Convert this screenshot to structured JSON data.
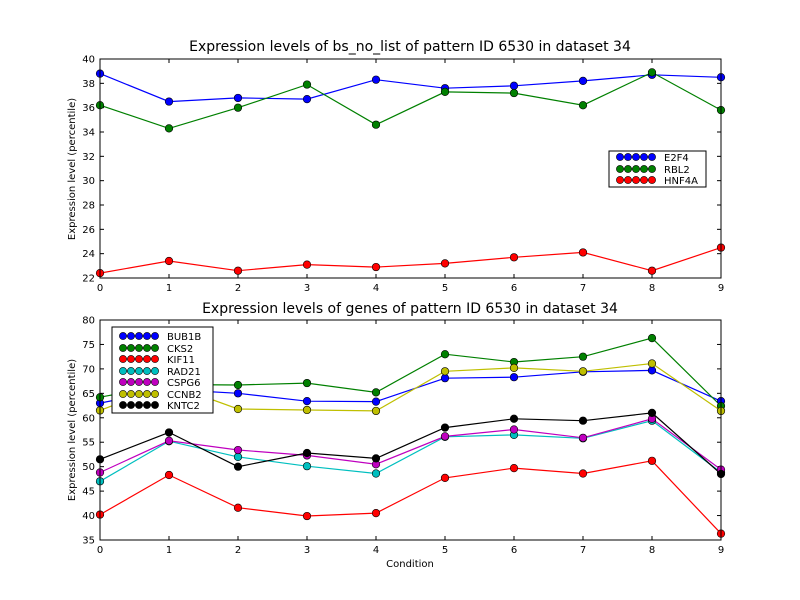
{
  "chart_data": [
    {
      "type": "line",
      "title": "Expression levels of bs_no_list of pattern ID 6530 in dataset 34",
      "xlabel": "",
      "ylabel": "Expression level (percentile)",
      "xlim": [
        0,
        9
      ],
      "ylim": [
        22,
        40
      ],
      "x": [
        0,
        1,
        2,
        3,
        4,
        5,
        6,
        7,
        8,
        9
      ],
      "xticks": [
        "0",
        "1",
        "2",
        "3",
        "4",
        "5",
        "6",
        "7",
        "8",
        "9"
      ],
      "yticks": [
        "22",
        "24",
        "26",
        "28",
        "30",
        "32",
        "34",
        "36",
        "38",
        "40"
      ],
      "grid": false,
      "legend_position": "right",
      "series": [
        {
          "name": "E2F4",
          "color": "#0000ff",
          "values": [
            38.8,
            36.5,
            36.8,
            36.7,
            38.3,
            37.6,
            37.8,
            38.2,
            38.7,
            38.5
          ]
        },
        {
          "name": "RBL2",
          "color": "#008000",
          "values": [
            36.2,
            34.3,
            36.0,
            37.9,
            34.6,
            37.3,
            37.2,
            36.2,
            38.9,
            35.8
          ]
        },
        {
          "name": "HNF4A",
          "color": "#ff0000",
          "values": [
            22.4,
            23.4,
            22.6,
            23.1,
            22.9,
            23.2,
            23.7,
            24.1,
            22.6,
            24.5
          ]
        }
      ]
    },
    {
      "type": "line",
      "title": "Expression levels of genes of pattern ID 6530 in dataset 34",
      "xlabel": "Condition",
      "ylabel": "Expression level (percentile)",
      "xlim": [
        0,
        9
      ],
      "ylim": [
        35,
        80
      ],
      "x": [
        0,
        1,
        2,
        3,
        4,
        5,
        6,
        7,
        8,
        9
      ],
      "xticks": [
        "0",
        "1",
        "2",
        "3",
        "4",
        "5",
        "6",
        "7",
        "8",
        "9"
      ],
      "yticks": [
        "35",
        "40",
        "45",
        "50",
        "55",
        "60",
        "65",
        "70",
        "75",
        "80"
      ],
      "grid": false,
      "legend_position": "top-left",
      "series": [
        {
          "name": "BUB1B",
          "color": "#0000ff",
          "values": [
            63.0,
            65.8,
            65.0,
            63.4,
            63.3,
            68.1,
            68.3,
            69.4,
            69.7,
            63.4
          ]
        },
        {
          "name": "CKS2",
          "color": "#008000",
          "values": [
            64.2,
            66.8,
            66.7,
            67.1,
            65.2,
            73.0,
            71.4,
            72.5,
            76.3,
            62.4
          ]
        },
        {
          "name": "KIF11",
          "color": "#ff0000",
          "values": [
            40.2,
            48.3,
            41.6,
            39.9,
            40.5,
            47.7,
            49.7,
            48.6,
            51.2,
            36.3
          ]
        },
        {
          "name": "RAD21",
          "color": "#00bfbf",
          "values": [
            47.0,
            55.2,
            52.0,
            50.1,
            48.6,
            56.1,
            56.5,
            55.8,
            59.4,
            48.8
          ]
        },
        {
          "name": "CSPG6",
          "color": "#bf00bf",
          "values": [
            48.8,
            55.3,
            53.4,
            52.3,
            50.5,
            56.2,
            57.6,
            55.9,
            59.8,
            49.4
          ]
        },
        {
          "name": "CCNB2",
          "color": "#bfbf00",
          "values": [
            61.5,
            66.9,
            61.8,
            61.6,
            61.4,
            69.5,
            70.2,
            69.5,
            71.1,
            61.4
          ]
        },
        {
          "name": "KNTC2",
          "color": "#000000",
          "values": [
            51.5,
            57.0,
            50.0,
            52.8,
            51.7,
            58.0,
            59.8,
            59.4,
            61.0,
            48.5
          ]
        }
      ]
    }
  ]
}
